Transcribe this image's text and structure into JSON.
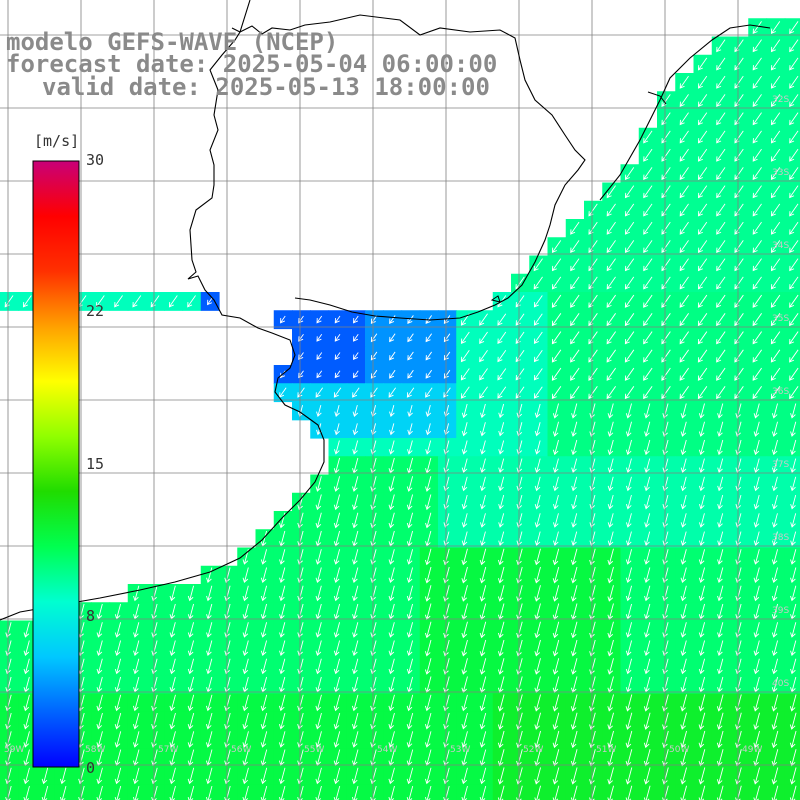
{
  "title": {
    "model": "modelo GEFS-WAVE (NCEP)",
    "forecast": "forecast date: 2025-05-04 06:00:00",
    "valid": "valid date: 2025-05-13 18:00:00"
  },
  "colorbar": {
    "unit": "[m/s]",
    "ticks": [
      "30",
      "22",
      "15",
      "8",
      "0"
    ],
    "min": 0,
    "max": 30,
    "colors": [
      "#0000ff",
      "#0064ff",
      "#00c8ff",
      "#00ffd0",
      "#00ff50",
      "#20dc00",
      "#90ff00",
      "#ffff00",
      "#ffa000",
      "#ff3000",
      "#ff0000",
      "#c80078"
    ]
  },
  "grid": {
    "latitudes": [
      "32S",
      "33S",
      "34S",
      "35S",
      "36S",
      "37S",
      "38S",
      "39S",
      "40S"
    ],
    "longitudes": [
      "59W",
      "58W",
      "57W",
      "56W",
      "55W",
      "54W",
      "53W",
      "52W",
      "51W",
      "50W",
      "49W"
    ]
  },
  "colors": {
    "land": "#ffffff",
    "coastline": "#000000",
    "arrows": "#ffffff",
    "gridlines": "#808080"
  }
}
